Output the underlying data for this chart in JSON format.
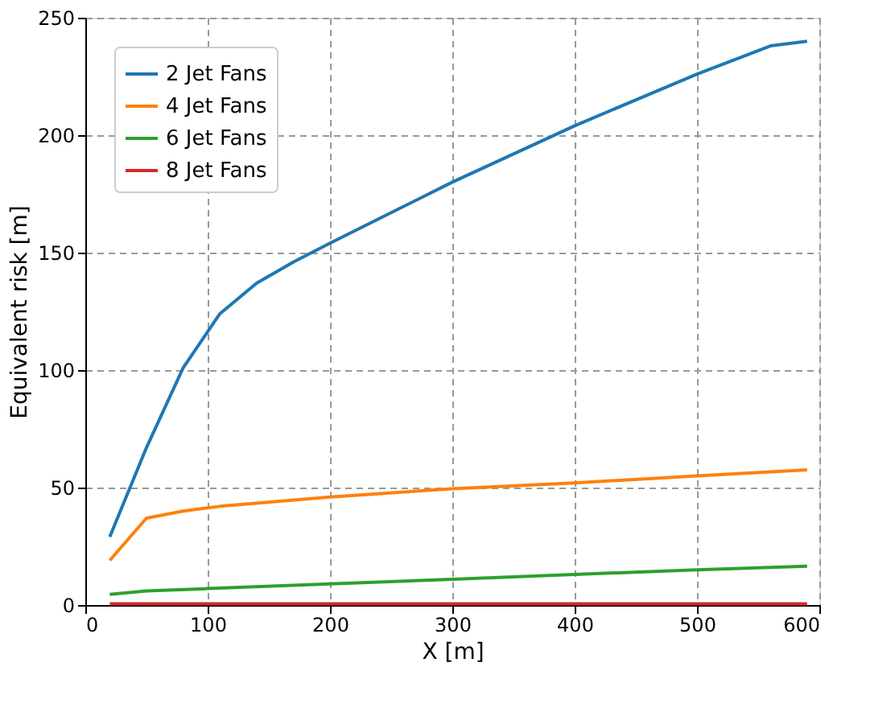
{
  "chart_data": {
    "type": "line",
    "xlabel": "X [m]",
    "ylabel": "Equivalent risk [m]",
    "xlim": [
      0,
      600
    ],
    "ylim": [
      0,
      250
    ],
    "xticks": [
      0,
      100,
      200,
      300,
      400,
      500,
      600
    ],
    "yticks": [
      0,
      50,
      100,
      150,
      200,
      250
    ],
    "grid": true,
    "legend": "top left",
    "line_style": "solid",
    "series": [
      {
        "name": "2 Jet Fans",
        "color": "#1f77b4",
        "x": [
          20,
          50,
          80,
          110,
          140,
          170,
          200,
          300,
          400,
          500,
          560,
          590
        ],
        "values": [
          29,
          67,
          101,
          124,
          137,
          146,
          154,
          180,
          204,
          226,
          238,
          240
        ]
      },
      {
        "name": "4 Jet Fans",
        "color": "#ff7f0e",
        "x": [
          20,
          50,
          80,
          110,
          200,
          300,
          400,
          500,
          590
        ],
        "values": [
          19,
          37,
          40,
          42,
          46,
          49.5,
          52,
          55,
          57.5
        ]
      },
      {
        "name": "6 Jet Fans",
        "color": "#2ca02c",
        "x": [
          20,
          50,
          100,
          200,
          300,
          400,
          500,
          590
        ],
        "values": [
          4.5,
          6,
          7,
          9,
          11,
          13,
          15,
          16.5
        ]
      },
      {
        "name": "8 Jet Fans",
        "color": "#d62728",
        "x": [
          20,
          590
        ],
        "values": [
          0.5,
          0.5
        ]
      }
    ]
  }
}
